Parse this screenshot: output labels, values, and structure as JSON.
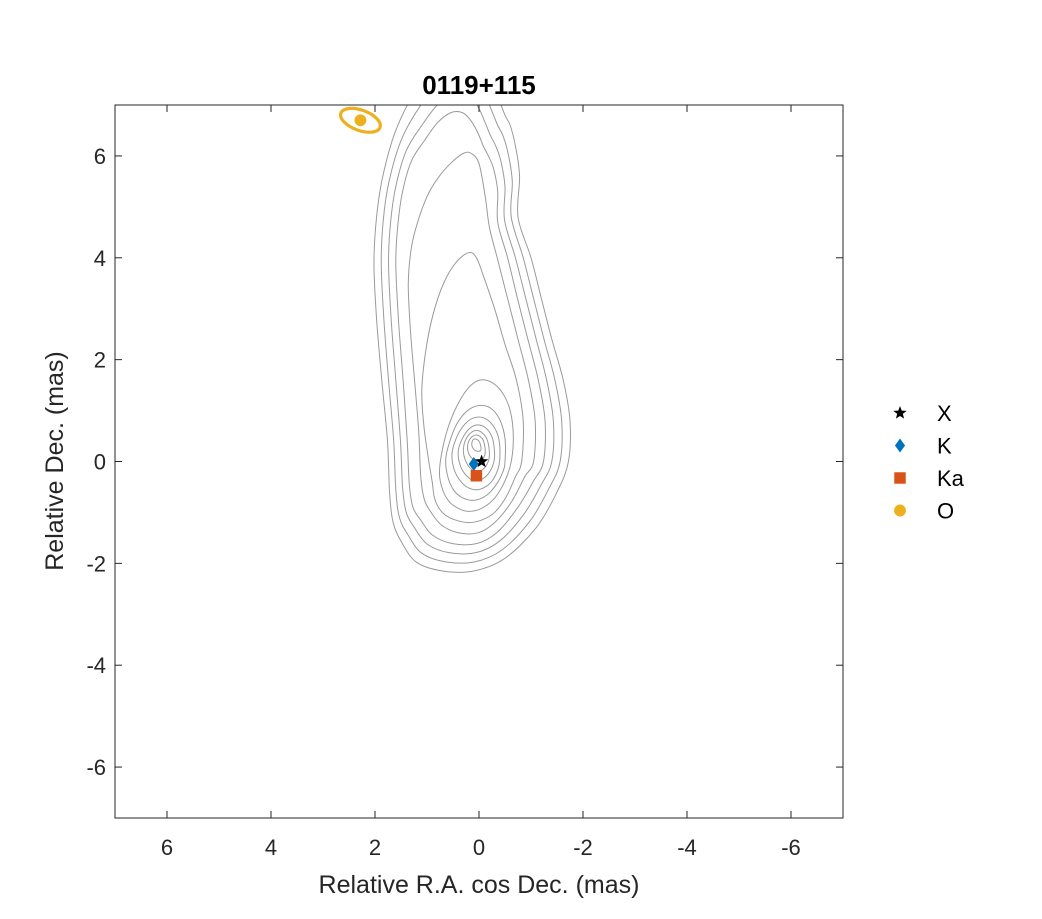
{
  "chart_data": {
    "type": "scatter",
    "title": "0119+115",
    "xlabel": "Relative R.A. cos Dec. (mas)",
    "ylabel": "Relative Dec. (mas)",
    "xlim": [
      7,
      -7
    ],
    "ylim": [
      -7,
      7
    ],
    "x_reversed": true,
    "xticks": [
      6,
      4,
      2,
      0,
      -2,
      -4,
      -6
    ],
    "yticks": [
      6,
      4,
      2,
      0,
      -2,
      -4,
      -6
    ],
    "grid": false,
    "legend_position": "outside-right",
    "series": [
      {
        "name": "X",
        "marker": "star",
        "color": "#000000",
        "points": [
          {
            "x": -0.05,
            "y": 0.0
          }
        ]
      },
      {
        "name": "K",
        "marker": "diamond",
        "color": "#0072BD",
        "points": [
          {
            "x": 0.1,
            "y": -0.05
          }
        ]
      },
      {
        "name": "Ka",
        "marker": "square",
        "color": "#D95319",
        "points": [
          {
            "x": 0.05,
            "y": -0.28
          }
        ]
      },
      {
        "name": "O",
        "marker": "circle",
        "color": "#EDB120",
        "points": [
          {
            "x": 2.28,
            "y": 6.7,
            "ellipse_a": 0.4,
            "ellipse_b": 0.2,
            "ellipse_angle_deg": -20
          }
        ]
      }
    ],
    "contours": {
      "color": "#9a9a9a",
      "levels": [
        {
          "x": [
            -1.72,
            -1.75,
            -1.62,
            -1.4,
            -1.2,
            -1.0,
            -0.75,
            -0.78,
            -0.7,
            -0.6,
            -0.5,
            -0.35,
            -0.2,
            0.1,
            0.4,
            0.8,
            1.2,
            1.6,
            1.85,
            1.97,
            2.02,
            1.97,
            1.87,
            1.76,
            1.72,
            1.65,
            1.48,
            1.2,
            0.7,
            0.1,
            -0.5,
            -1.1,
            -1.5
          ],
          "y": [
            0.0,
            0.8,
            1.6,
            2.4,
            3.2,
            4.0,
            4.8,
            5.6,
            6.2,
            6.6,
            6.8,
            7.2,
            7.6,
            7.9,
            7.9,
            7.7,
            7.3,
            6.5,
            5.6,
            4.8,
            3.9,
            2.8,
            1.6,
            0.4,
            -0.6,
            -1.2,
            -1.6,
            -1.98,
            -2.15,
            -2.15,
            -1.9,
            -1.3,
            -0.6
          ]
        },
        {
          "x": [
            -1.56,
            -1.59,
            -1.46,
            -1.25,
            -1.05,
            -0.85,
            -0.62,
            -0.64,
            -0.56,
            -0.46,
            -0.36,
            -0.22,
            -0.08,
            0.18,
            0.45,
            0.8,
            1.15,
            1.5,
            1.73,
            1.84,
            1.88,
            1.83,
            1.74,
            1.64,
            1.6,
            1.53,
            1.36,
            1.1,
            0.64,
            0.08,
            -0.45,
            -0.98,
            -1.35
          ],
          "y": [
            0.0,
            0.8,
            1.6,
            2.4,
            3.2,
            4.0,
            4.8,
            5.5,
            6.05,
            6.4,
            6.6,
            6.95,
            7.3,
            7.55,
            7.55,
            7.35,
            6.95,
            6.3,
            5.5,
            4.75,
            3.9,
            2.8,
            1.6,
            0.4,
            -0.55,
            -1.1,
            -1.45,
            -1.8,
            -1.97,
            -1.97,
            -1.73,
            -1.17,
            -0.52
          ]
        },
        {
          "x": [
            -1.4,
            -1.43,
            -1.3,
            -1.1,
            -0.9,
            -0.7,
            -0.49,
            -0.5,
            -0.42,
            -0.32,
            -0.22,
            -0.1,
            0.04,
            0.25,
            0.5,
            0.8,
            1.1,
            1.4,
            1.6,
            1.7,
            1.74,
            1.69,
            1.6,
            1.51,
            1.47,
            1.4,
            1.24,
            1.0,
            0.58,
            0.06,
            -0.4,
            -0.86,
            -1.2
          ],
          "y": [
            0.0,
            0.8,
            1.6,
            2.4,
            3.2,
            4.0,
            4.75,
            5.4,
            5.9,
            6.2,
            6.4,
            6.7,
            7.0,
            7.2,
            7.2,
            7.0,
            6.6,
            6.1,
            5.4,
            4.7,
            3.9,
            2.8,
            1.6,
            0.4,
            -0.5,
            -1.0,
            -1.3,
            -1.62,
            -1.79,
            -1.79,
            -1.56,
            -1.04,
            -0.45
          ]
        },
        {
          "x": [
            -1.24,
            -1.27,
            -1.14,
            -0.94,
            -0.74,
            -0.55,
            -0.36,
            -0.36,
            -0.28,
            -0.18,
            -0.08,
            0.02,
            0.16,
            0.32,
            0.54,
            0.8,
            1.05,
            1.3,
            1.47,
            1.56,
            1.6,
            1.55,
            1.46,
            1.38,
            1.34,
            1.27,
            1.12,
            0.9,
            0.52,
            0.04,
            -0.35,
            -0.74,
            -1.05
          ],
          "y": [
            0.0,
            0.8,
            1.6,
            2.4,
            3.2,
            4.0,
            4.7,
            5.3,
            5.75,
            6.0,
            6.2,
            6.45,
            6.7,
            6.85,
            6.85,
            6.65,
            6.3,
            5.9,
            5.3,
            4.65,
            3.9,
            2.8,
            1.6,
            0.4,
            -0.45,
            -0.9,
            -1.15,
            -1.44,
            -1.61,
            -1.61,
            -1.39,
            -0.91,
            -0.38
          ]
        },
        {
          "x": [
            -1.05,
            -1.08,
            -0.95,
            -0.75,
            -0.55,
            -0.35,
            -0.2,
            -0.12,
            0.0,
            0.15,
            0.3,
            0.55,
            0.8,
            1.0,
            1.18,
            1.3,
            1.36,
            1.32,
            1.24,
            1.16,
            1.12,
            1.05,
            0.92,
            0.72,
            0.4,
            0.02,
            -0.3,
            -0.62,
            -0.88
          ],
          "y": [
            0.0,
            0.8,
            1.6,
            2.4,
            3.2,
            4.0,
            4.6,
            5.2,
            5.85,
            6.05,
            6.05,
            5.85,
            5.55,
            5.2,
            4.7,
            4.2,
            3.5,
            2.6,
            1.6,
            0.6,
            -0.3,
            -0.75,
            -1.0,
            -1.25,
            -1.4,
            -1.4,
            -1.2,
            -0.8,
            -0.3
          ]
        },
        {
          "x": [
            -0.82,
            -0.85,
            -0.72,
            -0.5,
            -0.3,
            -0.1,
            0.05,
            0.2,
            0.45,
            0.68,
            0.88,
            1.02,
            1.1,
            1.06,
            0.98,
            0.9,
            0.86,
            0.78,
            0.65,
            0.45,
            0.2,
            -0.05,
            -0.3,
            -0.52,
            -0.7
          ],
          "y": [
            0.0,
            0.8,
            1.6,
            2.3,
            3.0,
            3.6,
            4.0,
            4.1,
            3.9,
            3.5,
            2.9,
            2.2,
            1.4,
            0.7,
            0.1,
            -0.4,
            -0.7,
            -0.9,
            -1.05,
            -1.15,
            -1.2,
            -1.15,
            -1.0,
            -0.7,
            -0.3
          ]
        },
        {
          "x": [
            -0.62,
            -0.66,
            -0.6,
            -0.45,
            -0.25,
            -0.02,
            0.2,
            0.42,
            0.6,
            0.72,
            0.76,
            0.7,
            0.58,
            0.4,
            0.2,
            -0.05,
            -0.3,
            -0.5
          ],
          "y": [
            0.0,
            0.5,
            1.0,
            1.35,
            1.55,
            1.6,
            1.45,
            1.1,
            0.65,
            0.15,
            -0.25,
            -0.55,
            -0.78,
            -0.92,
            -0.98,
            -0.92,
            -0.72,
            -0.38
          ]
        },
        {
          "x": [
            -0.5,
            -0.5,
            -0.4,
            -0.22,
            0.0,
            0.22,
            0.42,
            0.56,
            0.64,
            0.6,
            0.48,
            0.3,
            0.08,
            -0.15,
            -0.34,
            -0.46
          ],
          "y": [
            0.0,
            0.45,
            0.82,
            1.05,
            1.1,
            1.0,
            0.75,
            0.4,
            0.05,
            -0.3,
            -0.57,
            -0.72,
            -0.76,
            -0.66,
            -0.44,
            -0.2
          ]
        },
        {
          "x": [
            -0.4,
            -0.38,
            -0.26,
            -0.08,
            0.12,
            0.3,
            0.44,
            0.52,
            0.48,
            0.36,
            0.2,
            0.0,
            -0.2,
            -0.34
          ],
          "y": [
            0.05,
            0.45,
            0.72,
            0.86,
            0.85,
            0.7,
            0.45,
            0.15,
            -0.15,
            -0.38,
            -0.52,
            -0.55,
            -0.44,
            -0.22
          ]
        },
        {
          "x": [
            -0.3,
            -0.26,
            -0.14,
            0.02,
            0.18,
            0.32,
            0.4,
            0.36,
            0.24,
            0.08,
            -0.1,
            -0.24
          ],
          "y": [
            0.1,
            0.45,
            0.65,
            0.72,
            0.65,
            0.45,
            0.2,
            -0.08,
            -0.28,
            -0.38,
            -0.32,
            -0.14
          ]
        },
        {
          "x": [
            -0.2,
            -0.16,
            -0.04,
            0.1,
            0.24,
            0.3,
            0.26,
            0.14,
            0.0,
            -0.14
          ],
          "y": [
            0.12,
            0.42,
            0.58,
            0.6,
            0.46,
            0.24,
            0.02,
            -0.16,
            -0.2,
            -0.08
          ]
        },
        {
          "x": [
            -0.12,
            -0.08,
            0.04,
            0.16,
            0.22,
            0.18,
            0.06,
            -0.06
          ],
          "y": [
            0.18,
            0.42,
            0.52,
            0.46,
            0.3,
            0.12,
            0.02,
            0.04
          ]
        },
        {
          "x": [
            -0.04,
            0.0,
            0.1,
            0.14,
            0.1,
            0.02
          ],
          "y": [
            0.24,
            0.4,
            0.44,
            0.34,
            0.24,
            0.2
          ]
        }
      ]
    }
  }
}
